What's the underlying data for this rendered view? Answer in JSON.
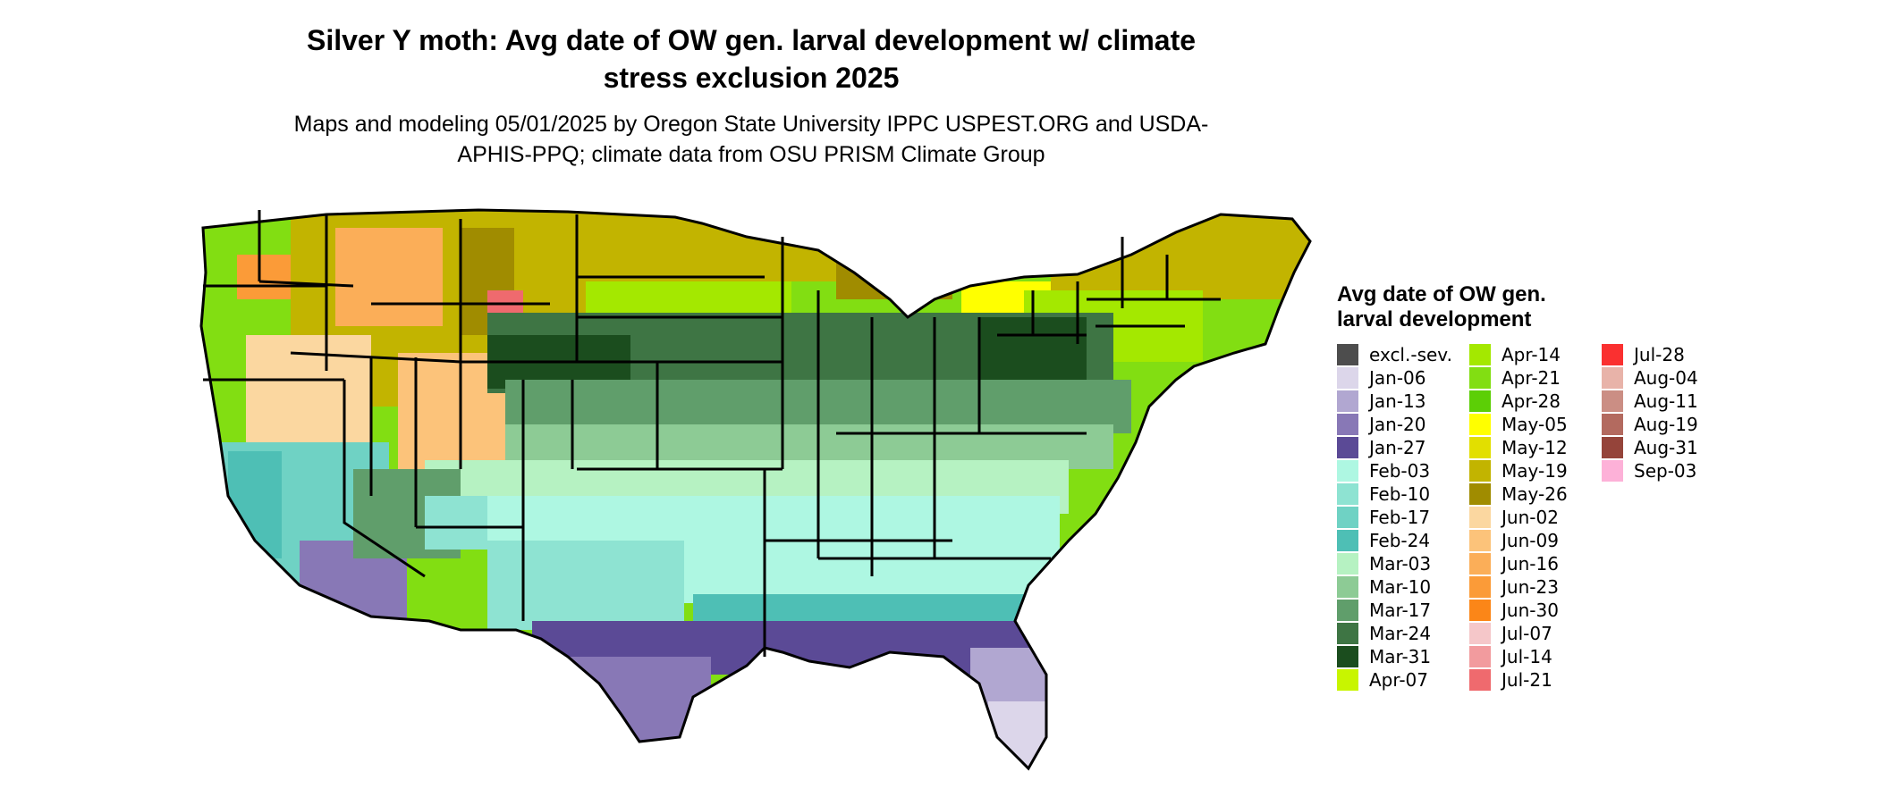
{
  "title": "Silver Y moth: Avg date of OW gen. larval development w/ climate stress exclusion 2025",
  "subtitle": "Maps and modeling 05/01/2025 by Oregon State University IPPC USPEST.ORG and USDA-APHIS-PPQ; climate data from OSU PRISM Climate Group",
  "legend": {
    "title": "Avg date of OW gen. larval development",
    "items": [
      {
        "label": "excl.-sev.",
        "color": "#4d4d4d"
      },
      {
        "label": "Jan-06",
        "color": "#dcd6ea"
      },
      {
        "label": "Jan-13",
        "color": "#b1a7d1"
      },
      {
        "label": "Jan-20",
        "color": "#8878b6"
      },
      {
        "label": "Jan-27",
        "color": "#5b4a96"
      },
      {
        "label": "Feb-03",
        "color": "#aef7e2"
      },
      {
        "label": "Feb-10",
        "color": "#8ee3d2"
      },
      {
        "label": "Feb-17",
        "color": "#6fd2c4"
      },
      {
        "label": "Feb-24",
        "color": "#4ebfb5"
      },
      {
        "label": "Mar-03",
        "color": "#b6f2c2"
      },
      {
        "label": "Mar-10",
        "color": "#8dcb95"
      },
      {
        "label": "Mar-17",
        "color": "#609e6b"
      },
      {
        "label": "Mar-24",
        "color": "#3e7544"
      },
      {
        "label": "Mar-31",
        "color": "#1b4d1e"
      },
      {
        "label": "Apr-07",
        "color": "#c8f500"
      },
      {
        "label": "Apr-14",
        "color": "#a4e800"
      },
      {
        "label": "Apr-21",
        "color": "#82de12"
      },
      {
        "label": "Apr-28",
        "color": "#5ccf06"
      },
      {
        "label": "May-05",
        "color": "#ffff00"
      },
      {
        "label": "May-12",
        "color": "#e2df00"
      },
      {
        "label": "May-19",
        "color": "#c2b400"
      },
      {
        "label": "May-26",
        "color": "#a08c00"
      },
      {
        "label": "Jun-02",
        "color": "#fbd7a0"
      },
      {
        "label": "Jun-09",
        "color": "#fcc37a"
      },
      {
        "label": "Jun-16",
        "color": "#fbae58"
      },
      {
        "label": "Jun-23",
        "color": "#fb9b38"
      },
      {
        "label": "Jun-30",
        "color": "#fb8618"
      },
      {
        "label": "Jul-07",
        "color": "#f5c7c9"
      },
      {
        "label": "Jul-14",
        "color": "#f29b9e"
      },
      {
        "label": "Jul-21",
        "color": "#ef6a6e"
      },
      {
        "label": "Jul-28",
        "color": "#fa3030"
      },
      {
        "label": "Aug-04",
        "color": "#e8b3a9"
      },
      {
        "label": "Aug-11",
        "color": "#cb8e84"
      },
      {
        "label": "Aug-19",
        "color": "#b36a5f"
      },
      {
        "label": "Aug-31",
        "color": "#95443a"
      },
      {
        "label": "Sep-03",
        "color": "#fdb1d8"
      }
    ]
  }
}
